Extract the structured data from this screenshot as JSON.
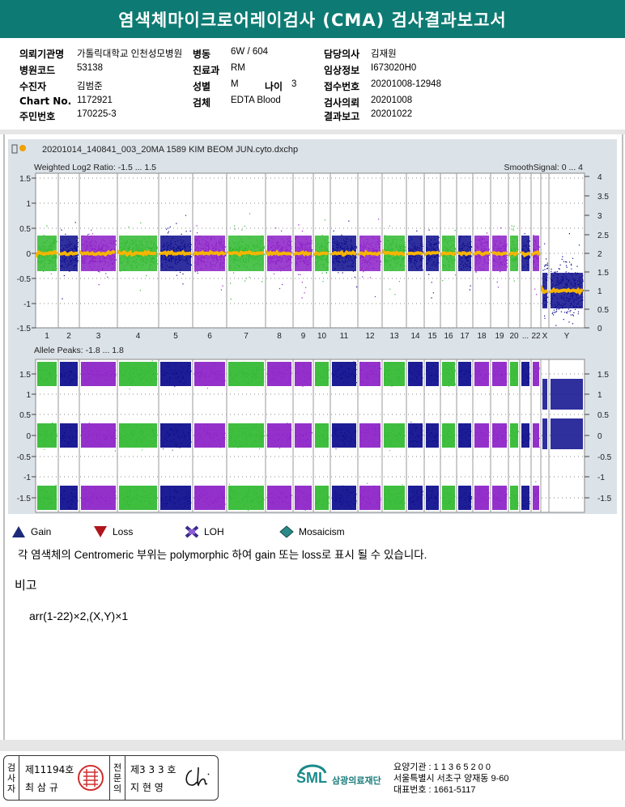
{
  "title": "염색체마이크로어레이검사 (CMA) 검사결과보고서",
  "info": {
    "c1": [
      {
        "label": "의뢰기관명",
        "value": "가톨릭대학교 인천성모병원"
      },
      {
        "label": "병원코드",
        "value": "53138"
      },
      {
        "label": "수진자",
        "value": "김범준"
      },
      {
        "label": "Chart No.",
        "value": "1172921"
      },
      {
        "label": "주민번호",
        "value": "170225-3"
      }
    ],
    "c2": [
      {
        "label": "병동",
        "value": "6W / 604"
      },
      {
        "label": "진료과",
        "value": "RM"
      },
      {
        "label": "성별",
        "value": "M"
      },
      {
        "label": "검체",
        "value": "EDTA Blood"
      }
    ],
    "age_label": "나이",
    "age_value": "3",
    "c3": [
      {
        "label": "담당의사",
        "value": "김재원"
      },
      {
        "label": "임상정보",
        "value": "I673020H0"
      },
      {
        "label": "접수번호",
        "value": "20201008-12948"
      },
      {
        "label": "검사의뢰",
        "value": "20201008"
      },
      {
        "label": "결과보고",
        "value": "20201022"
      }
    ]
  },
  "plot": {
    "file_title": "20201014_140841_003_20MA 1589 KIM BEOM JUN.cyto.dxchp",
    "top_label": "Weighted Log2 Ratio: -1.5 ... 1.5",
    "top_right_label": "SmoothSignal: 0 ... 4",
    "bottom_label": "Allele Peaks: -1.8 ... 1.8",
    "top_left_ticks": [
      "1.5",
      "1",
      "0.5",
      "0",
      "-0.5",
      "-1",
      "-1.5"
    ],
    "top_right_ticks": [
      "4",
      "3.5",
      "3",
      "2.5",
      "2",
      "1.5",
      "1",
      "0.5",
      "0"
    ],
    "bottom_left_ticks": [
      "1.5",
      "1",
      "0.5",
      "0",
      "-0.5",
      "-1",
      "-1.5"
    ],
    "bottom_right_ticks": [
      "1.5",
      "1",
      "0.5",
      "0",
      "-0.5",
      "-1",
      "-1.5"
    ],
    "chromosomes": [
      "1",
      "2",
      "3",
      "4",
      "5",
      "6",
      "7",
      "8",
      "9",
      "10",
      "11",
      "12",
      "13",
      "14",
      "15",
      "16",
      "17",
      "18",
      "19",
      "20",
      "...",
      "22",
      "X",
      "Y"
    ],
    "colors": {
      "green": "#2fb82f",
      "blue": "#0a0a8c",
      "purple": "#8b1fc7",
      "orange": "#f5b400",
      "bg": "#dbe2e8",
      "area": "#ffffff"
    }
  },
  "legend": [
    {
      "label": "Gain",
      "icon": "triangle-up-icon"
    },
    {
      "label": "Loss",
      "icon": "triangle-down-icon"
    },
    {
      "label": "LOH",
      "icon": "loh-icon"
    },
    {
      "label": "Mosaicism",
      "icon": "diamond-icon"
    }
  ],
  "note": "각 염색체의 Centromeric 부위는 polymorphic 하여 gain 또는 loss로 표시 될 수 있습니다.",
  "remarks_title": "비고",
  "karyotype": "arr(1-22)×2,(X,Y)×1",
  "signatures": {
    "col1_label": [
      "검",
      "사",
      "자"
    ],
    "name1_no": "제11194호",
    "name1": "최 삼 규",
    "col2_label": [
      "전",
      "문",
      "의"
    ],
    "name2_no": "제3 3 3 호",
    "name2": "지 현 영"
  },
  "footer": {
    "logo_text": "SML",
    "org": "삼광의료재단",
    "line1": "요양기관 : 1 1 3 6 5 2 0 0",
    "line2": "서울특별시 서초구 양재동 9-60",
    "line3": "대표번호 : 1661-5117"
  }
}
